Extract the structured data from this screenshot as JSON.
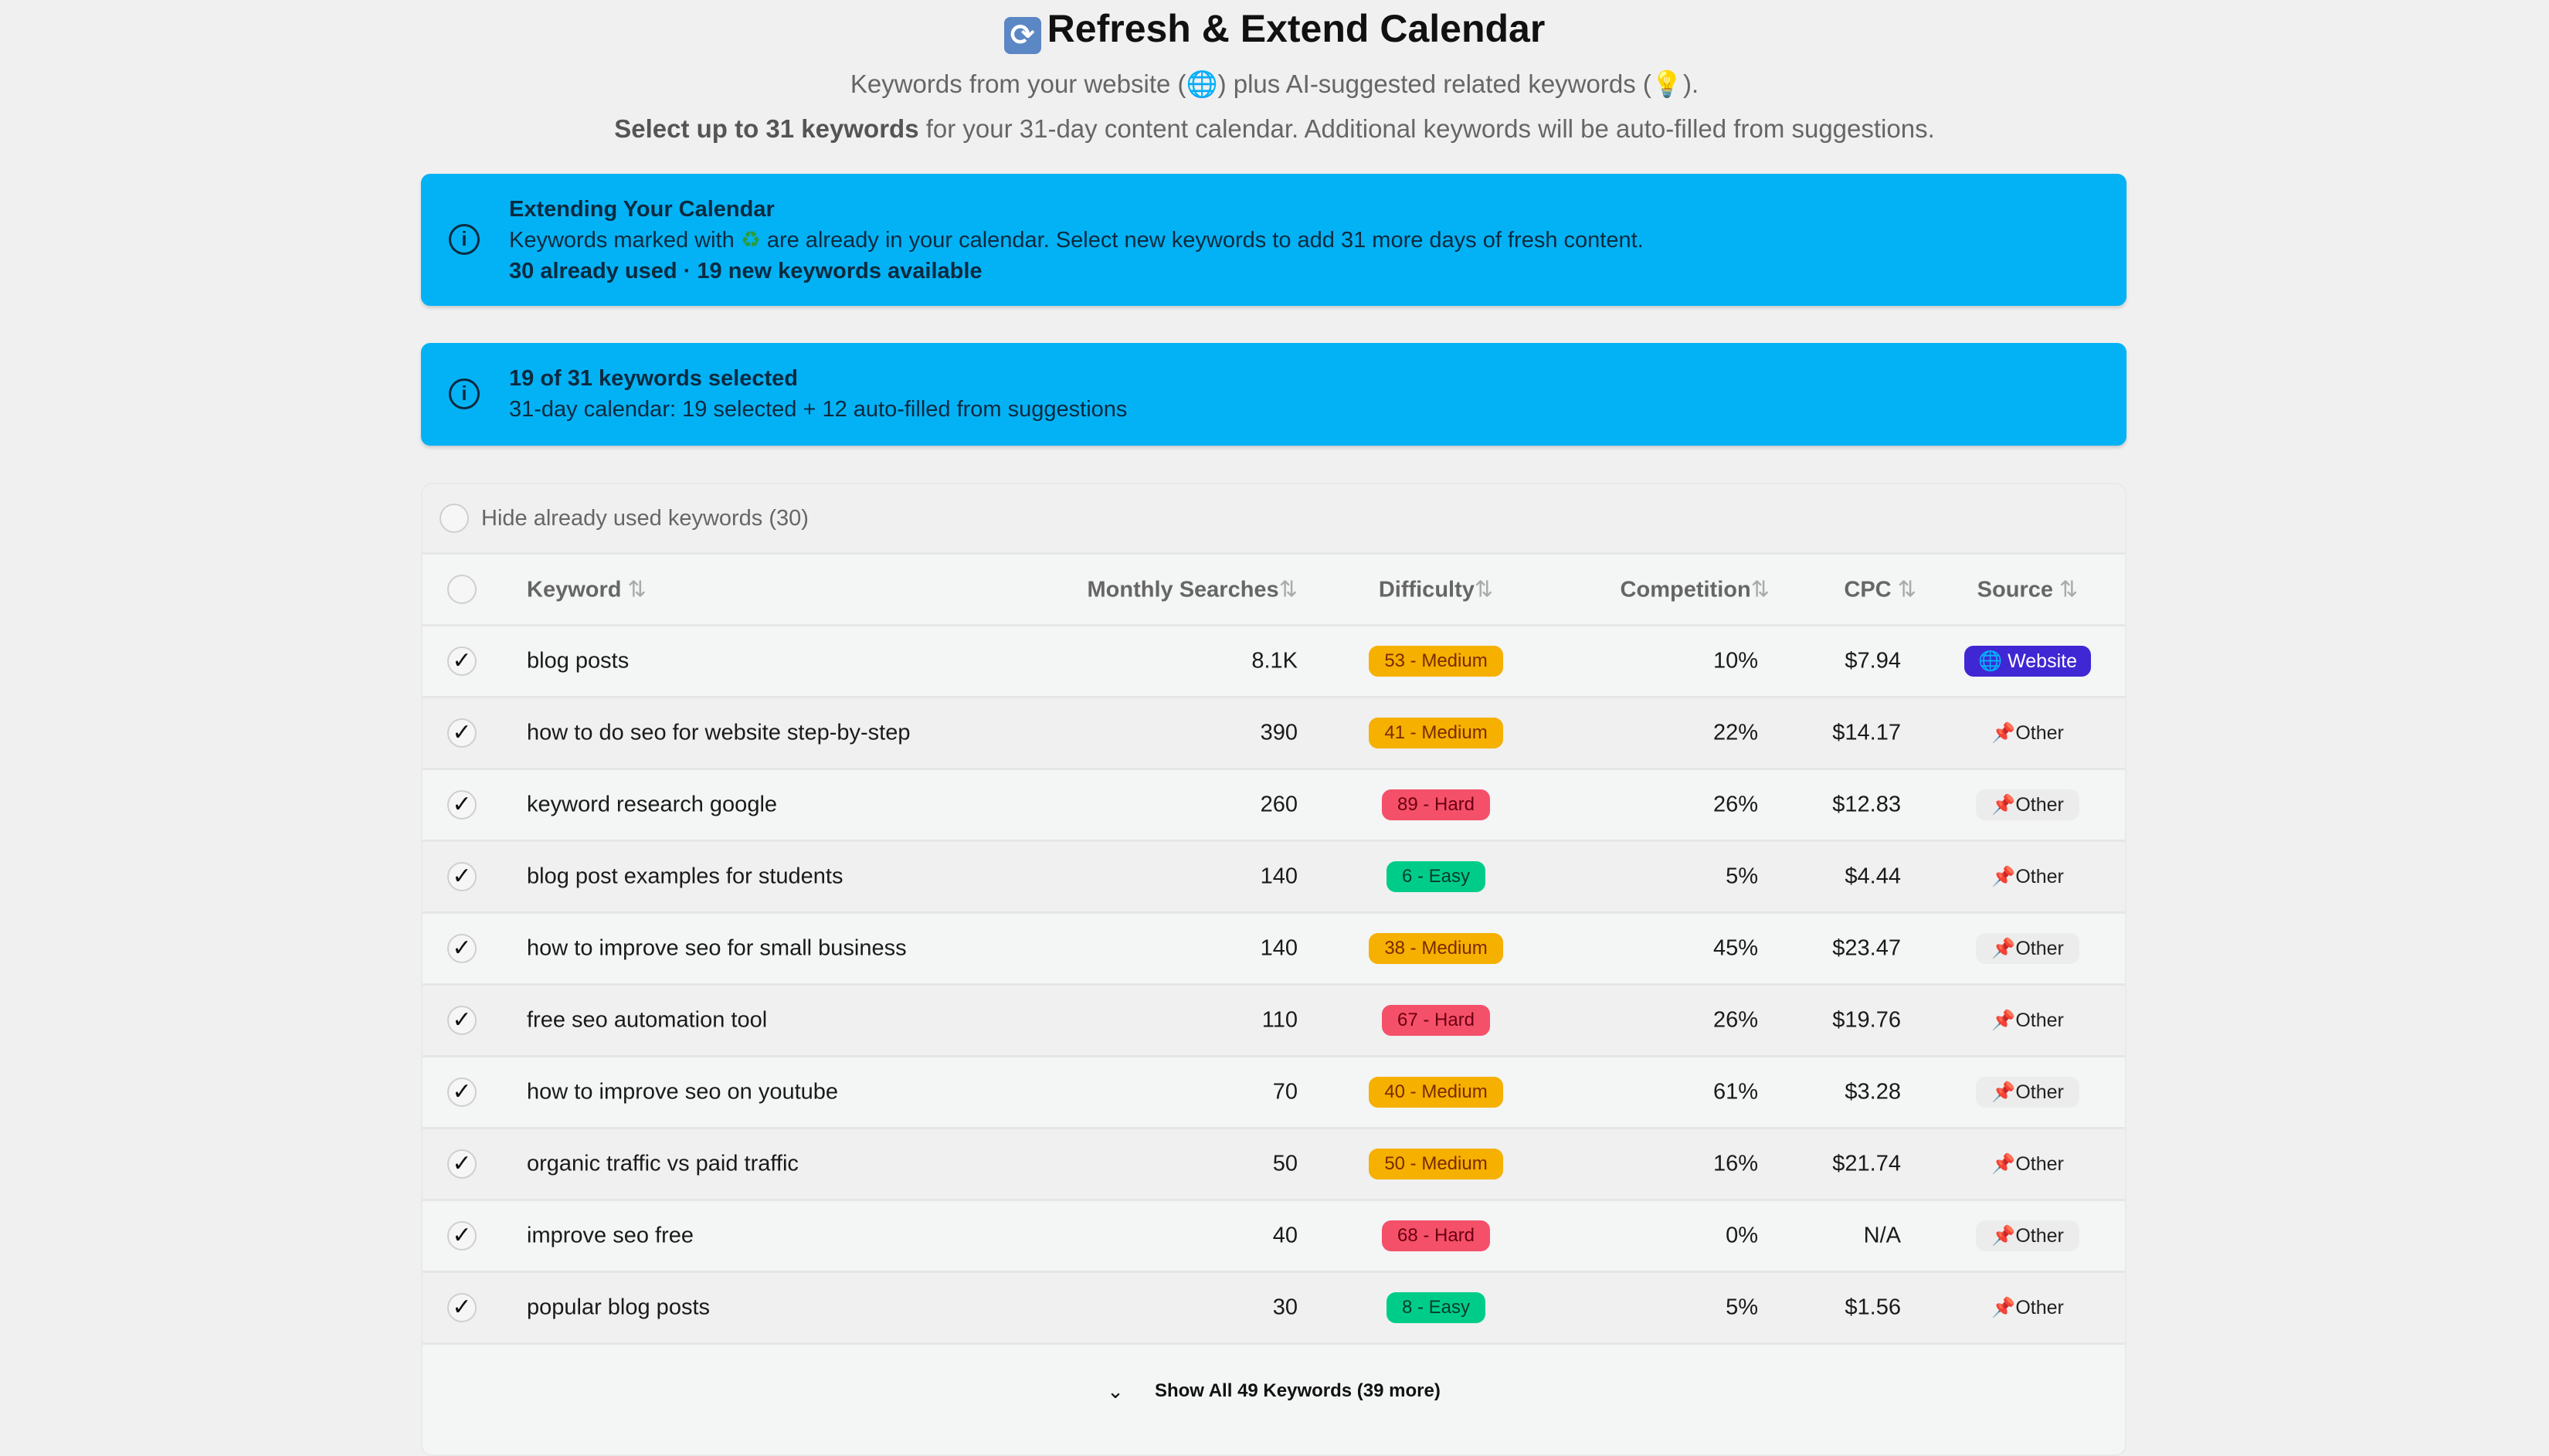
{
  "header": {
    "icon": "refresh-icon",
    "title": "Refresh & Extend Calendar",
    "subtitle_pre": "Keywords from your website (",
    "subtitle_mid": ") plus AI-suggested related keywords (",
    "subtitle_post": ").",
    "line2_bold": "Select up to 31 keywords",
    "line2_rest": " for your 31-day content calendar. Additional keywords will be auto-filled from suggestions."
  },
  "alert_extend": {
    "title": "Extending Your Calendar",
    "text_pre": "Keywords marked with ",
    "text_post": " are already in your calendar. Select new keywords to add 31 more days of fresh content.",
    "stats": "30 already used · 19 new keywords available"
  },
  "alert_selected": {
    "title": "19 of 31 keywords selected",
    "text": "31-day calendar: 19 selected + 12 auto-filled from suggestions"
  },
  "filter": {
    "label": "Hide already used keywords (30)",
    "checked": false
  },
  "table": {
    "columns": [
      "Keyword",
      "Monthly Searches",
      "Difficulty",
      "Competition",
      "CPC",
      "Source"
    ],
    "sort_icon": "⇅",
    "rows": [
      {
        "keyword": "blog posts",
        "searches": "8.1K",
        "difficulty": "53 - Medium",
        "level": "medium",
        "competition": "10%",
        "cpc": "$7.94",
        "source": "Website"
      },
      {
        "keyword": "how to do seo for website step-by-step",
        "searches": "390",
        "difficulty": "41 - Medium",
        "level": "medium",
        "competition": "22%",
        "cpc": "$14.17",
        "source": "Other"
      },
      {
        "keyword": "keyword research google",
        "searches": "260",
        "difficulty": "89 - Hard",
        "level": "hard",
        "competition": "26%",
        "cpc": "$12.83",
        "source": "Other"
      },
      {
        "keyword": "blog post examples for students",
        "searches": "140",
        "difficulty": "6 - Easy",
        "level": "easy",
        "competition": "5%",
        "cpc": "$4.44",
        "source": "Other"
      },
      {
        "keyword": "how to improve seo for small business",
        "searches": "140",
        "difficulty": "38 - Medium",
        "level": "medium",
        "competition": "45%",
        "cpc": "$23.47",
        "source": "Other"
      },
      {
        "keyword": "free seo automation tool",
        "searches": "110",
        "difficulty": "67 - Hard",
        "level": "hard",
        "competition": "26%",
        "cpc": "$19.76",
        "source": "Other"
      },
      {
        "keyword": "how to improve seo on youtube",
        "searches": "70",
        "difficulty": "40 - Medium",
        "level": "medium",
        "competition": "61%",
        "cpc": "$3.28",
        "source": "Other"
      },
      {
        "keyword": "organic traffic vs paid traffic",
        "searches": "50",
        "difficulty": "50 - Medium",
        "level": "medium",
        "competition": "16%",
        "cpc": "$21.74",
        "source": "Other"
      },
      {
        "keyword": "improve seo free",
        "searches": "40",
        "difficulty": "68 - Hard",
        "level": "hard",
        "competition": "0%",
        "cpc": "N/A",
        "source": "Other"
      },
      {
        "keyword": "popular blog posts",
        "searches": "30",
        "difficulty": "8 - Easy",
        "level": "easy",
        "competition": "5%",
        "cpc": "$1.56",
        "source": "Other"
      }
    ]
  },
  "footer": {
    "label": "Show All 49 Keywords (39 more)"
  },
  "colors": {
    "alert": "#03b2f5",
    "medium": "#f5b000",
    "hard": "#f5506a",
    "easy": "#00cc8a",
    "website": "#3f27d4"
  }
}
